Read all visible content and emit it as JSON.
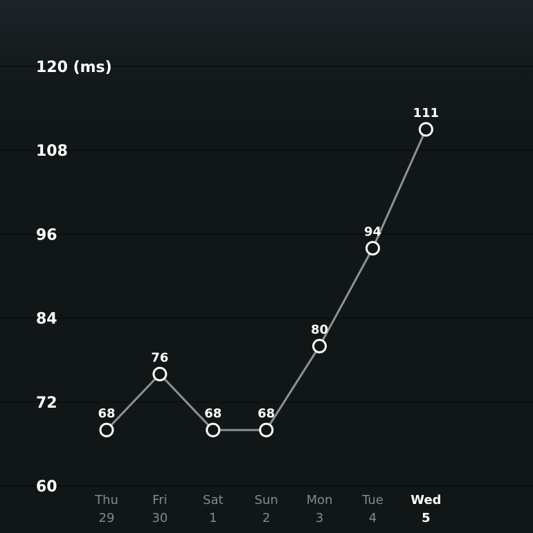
{
  "chart_data": {
    "type": "line",
    "unit": "(ms)",
    "ylim": [
      60,
      120
    ],
    "yticks": [
      "120 (ms)",
      "108",
      "96",
      "84",
      "72",
      "60"
    ],
    "ytick_values": [
      120,
      108,
      96,
      84,
      72,
      60
    ],
    "categories": [
      {
        "day": "Thu",
        "date": "29"
      },
      {
        "day": "Fri",
        "date": "30"
      },
      {
        "day": "Sat",
        "date": "1"
      },
      {
        "day": "Sun",
        "date": "2"
      },
      {
        "day": "Mon",
        "date": "3"
      },
      {
        "day": "Tue",
        "date": "4"
      },
      {
        "day": "Wed",
        "date": "5"
      }
    ],
    "values": [
      68,
      76,
      68,
      68,
      80,
      94,
      111
    ],
    "highlighted_category": "Wed",
    "grid": true,
    "colors": {
      "background": "#111617",
      "line": "#8e9192",
      "marker": "#ffffff",
      "axis_text": "#85898b",
      "highlight_text": "#ffffff"
    }
  }
}
